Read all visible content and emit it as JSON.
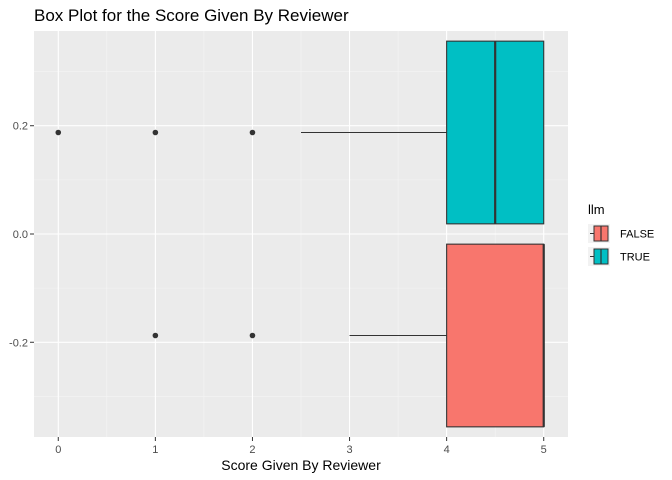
{
  "chart_data": {
    "type": "boxplot",
    "orientation": "horizontal",
    "title": "Box Plot for the Score Given By Reviewer",
    "xlabel": "Score Given By Reviewer",
    "ylabel": "",
    "xlim": [
      -0.25,
      5.25
    ],
    "ylim": [
      -0.375,
      0.375
    ],
    "x_ticks": [
      0,
      1,
      2,
      3,
      4,
      5
    ],
    "y_ticks": [
      0.2,
      0.0,
      -0.2
    ],
    "y_tick_labels": [
      "0.2",
      "0.0",
      "-0.2"
    ],
    "grid": true,
    "legend": {
      "title": "llm",
      "position": "right",
      "entries": [
        "FALSE",
        "TRUE"
      ]
    },
    "series": [
      {
        "name": "FALSE",
        "color": "#F8766D",
        "y_center": -0.1875,
        "half_width": 0.16875,
        "lower_whisker": 3,
        "q1": 4,
        "median": 5,
        "q3": 5,
        "upper_whisker": 5,
        "outliers": [
          1,
          2
        ]
      },
      {
        "name": "TRUE",
        "color": "#00BFC4",
        "y_center": 0.1875,
        "half_width": 0.16875,
        "lower_whisker": 2.5,
        "q1": 4,
        "median": 4.5,
        "q3": 5,
        "upper_whisker": 5,
        "outliers": [
          0,
          1,
          2
        ]
      }
    ]
  }
}
